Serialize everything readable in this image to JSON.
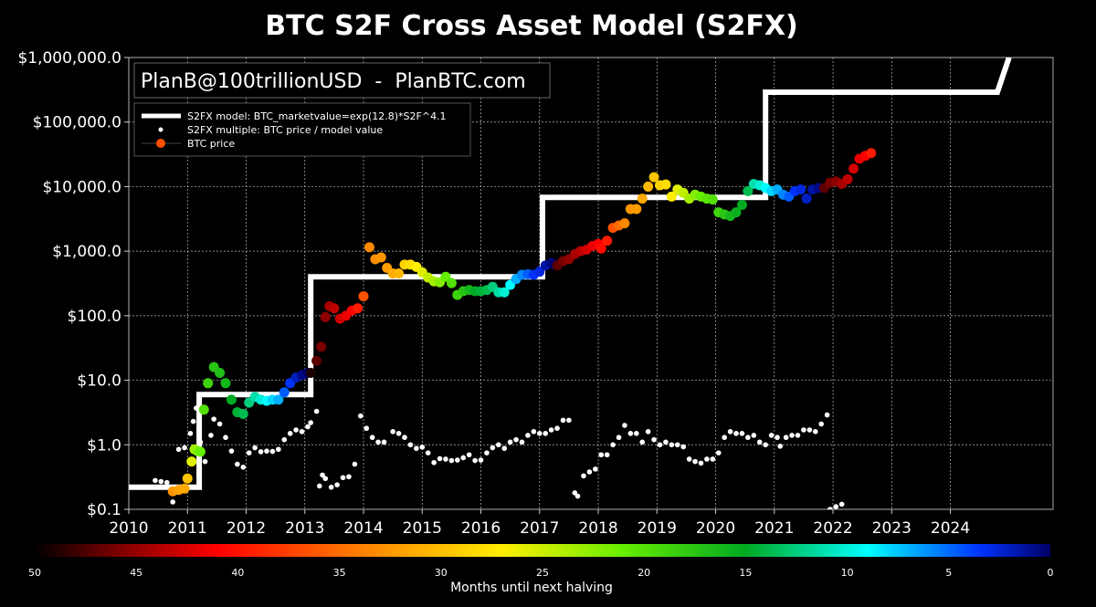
{
  "chart_data": {
    "type": "scatter",
    "title": "BTC S2F Cross Asset Model (S2FX)",
    "watermark": "PlanB@100trillionUSD  -  PlanBTC.com",
    "yscale": "log",
    "ylim": [
      0.1,
      1000000
    ],
    "xlim": [
      2010,
      2025.75
    ],
    "y_ticks": [
      {
        "value": 0.1,
        "label": "$0.1"
      },
      {
        "value": 1,
        "label": "$1.0"
      },
      {
        "value": 10,
        "label": "$10.0"
      },
      {
        "value": 100,
        "label": "$100.0"
      },
      {
        "value": 1000,
        "label": "$1,000.0"
      },
      {
        "value": 10000,
        "label": "$10,000.0"
      },
      {
        "value": 100000,
        "label": "$100,000.0"
      },
      {
        "value": 1000000,
        "label": "$1,000,000.0"
      }
    ],
    "x_ticks": [
      "2010",
      "2011",
      "2012",
      "2013",
      "2014",
      "2015",
      "2016",
      "2017",
      "2018",
      "2019",
      "2020",
      "2021",
      "2022",
      "2023",
      "2024"
    ],
    "grid": true,
    "legend_position": "top-left",
    "legend": [
      "S2FX model: BTC_marketvalue=exp(12.8)*S2F^4.1",
      "S2FX multiple: BTC price / model value",
      "BTC price"
    ],
    "colorbar": {
      "label": "Months until next halving",
      "ticks": [
        "50",
        "45",
        "40",
        "35",
        "30",
        "25",
        "20",
        "15",
        "10",
        "5",
        "0"
      ]
    },
    "series": [
      {
        "type": "step",
        "points": [
          [
            2010.0,
            0.22
          ],
          [
            2011.2,
            0.22
          ],
          [
            2011.2,
            6
          ],
          [
            2013.1,
            6
          ],
          [
            2013.1,
            400
          ],
          [
            2017.05,
            400
          ],
          [
            2017.05,
            6800
          ],
          [
            2020.85,
            6800
          ],
          [
            2020.85,
            290000
          ],
          [
            2024.8,
            290000
          ],
          [
            2025.0,
            1000000
          ]
        ]
      },
      {
        "type": "scatter",
        "points": [
          [
            2010.45,
            0.28
          ],
          [
            2010.55,
            0.27
          ],
          [
            2010.65,
            0.26
          ],
          [
            2010.75,
            0.13
          ],
          [
            2010.85,
            0.85
          ],
          [
            2010.95,
            0.9
          ],
          [
            2011.05,
            1.5
          ],
          [
            2011.1,
            2.3
          ],
          [
            2011.15,
            3.7
          ],
          [
            2011.22,
            1.1
          ],
          [
            2011.3,
            0.55
          ],
          [
            2011.4,
            1.4
          ],
          [
            2011.45,
            2.5
          ],
          [
            2011.55,
            2.1
          ],
          [
            2011.65,
            1.3
          ],
          [
            2011.75,
            0.8
          ],
          [
            2011.85,
            0.5
          ],
          [
            2011.95,
            0.45
          ],
          [
            2012.05,
            0.75
          ],
          [
            2012.15,
            0.9
          ],
          [
            2012.25,
            0.78
          ],
          [
            2012.35,
            0.8
          ],
          [
            2012.45,
            0.79
          ],
          [
            2012.55,
            0.85
          ],
          [
            2012.65,
            1.2
          ],
          [
            2012.75,
            1.5
          ],
          [
            2012.85,
            1.7
          ],
          [
            2012.95,
            1.6
          ],
          [
            2013.05,
            1.9
          ],
          [
            2013.1,
            2.2
          ],
          [
            2013.2,
            3.3
          ],
          [
            2013.25,
            0.23
          ],
          [
            2013.3,
            0.34
          ],
          [
            2013.35,
            0.3
          ],
          [
            2013.45,
            0.22
          ],
          [
            2013.55,
            0.24
          ],
          [
            2013.65,
            0.31
          ],
          [
            2013.75,
            0.32
          ],
          [
            2013.85,
            0.5
          ],
          [
            2013.95,
            2.8
          ],
          [
            2014.05,
            1.8
          ],
          [
            2014.15,
            1.3
          ],
          [
            2014.25,
            1.1
          ],
          [
            2014.35,
            1.1
          ],
          [
            2014.5,
            1.6
          ],
          [
            2014.6,
            1.5
          ],
          [
            2014.7,
            1.3
          ],
          [
            2014.8,
            1.0
          ],
          [
            2014.9,
            0.88
          ],
          [
            2015.0,
            0.92
          ],
          [
            2015.1,
            0.75
          ],
          [
            2015.2,
            0.53
          ],
          [
            2015.3,
            0.61
          ],
          [
            2015.4,
            0.6
          ],
          [
            2015.5,
            0.57
          ],
          [
            2015.6,
            0.58
          ],
          [
            2015.7,
            0.63
          ],
          [
            2015.8,
            0.7
          ],
          [
            2015.9,
            0.57
          ],
          [
            2016.0,
            0.58
          ],
          [
            2016.1,
            0.75
          ],
          [
            2016.2,
            0.9
          ],
          [
            2016.3,
            1.0
          ],
          [
            2016.4,
            0.88
          ],
          [
            2016.5,
            1.1
          ],
          [
            2016.6,
            1.2
          ],
          [
            2016.7,
            1.1
          ],
          [
            2016.8,
            1.4
          ],
          [
            2016.9,
            1.6
          ],
          [
            2017.0,
            1.5
          ],
          [
            2017.1,
            1.5
          ],
          [
            2017.2,
            1.7
          ],
          [
            2017.3,
            1.8
          ],
          [
            2017.4,
            2.4
          ],
          [
            2017.5,
            2.4
          ],
          [
            2017.6,
            0.18
          ],
          [
            2017.65,
            0.16
          ],
          [
            2017.75,
            0.33
          ],
          [
            2017.85,
            0.38
          ],
          [
            2017.95,
            0.42
          ],
          [
            2018.05,
            0.7
          ],
          [
            2018.15,
            0.7
          ],
          [
            2018.25,
            1.0
          ],
          [
            2018.35,
            1.3
          ],
          [
            2018.45,
            2.0
          ],
          [
            2018.55,
            1.5
          ],
          [
            2018.65,
            1.5
          ],
          [
            2018.75,
            1.1
          ],
          [
            2018.85,
            1.6
          ],
          [
            2018.95,
            1.2
          ],
          [
            2019.05,
            1.0
          ],
          [
            2019.15,
            1.1
          ],
          [
            2019.25,
            1.0
          ],
          [
            2019.35,
            1.0
          ],
          [
            2019.45,
            0.93
          ],
          [
            2019.55,
            0.6
          ],
          [
            2019.65,
            0.55
          ],
          [
            2019.75,
            0.52
          ],
          [
            2019.85,
            0.6
          ],
          [
            2019.95,
            0.6
          ],
          [
            2020.05,
            0.75
          ],
          [
            2020.15,
            1.3
          ],
          [
            2020.25,
            1.6
          ],
          [
            2020.35,
            1.5
          ],
          [
            2020.45,
            1.5
          ],
          [
            2020.55,
            1.3
          ],
          [
            2020.65,
            1.4
          ],
          [
            2020.75,
            1.1
          ],
          [
            2020.85,
            1.0
          ],
          [
            2020.95,
            1.4
          ],
          [
            2021.05,
            1.3
          ],
          [
            2021.1,
            0.95
          ],
          [
            2021.2,
            1.3
          ],
          [
            2021.3,
            1.4
          ],
          [
            2021.4,
            1.4
          ],
          [
            2021.5,
            1.7
          ],
          [
            2021.6,
            1.7
          ],
          [
            2021.7,
            1.6
          ],
          [
            2021.8,
            2.1
          ],
          [
            2021.9,
            2.9
          ],
          [
            2021.95,
            0.1
          ],
          [
            2022.05,
            0.11
          ],
          [
            2022.15,
            0.12
          ]
        ]
      },
      {
        "type": "scatter",
        "points": [
          [
            2010.75,
            0.19,
            33
          ],
          [
            2010.85,
            0.2,
            31
          ],
          [
            2010.95,
            0.21,
            30
          ],
          [
            2011.0,
            0.3,
            28
          ],
          [
            2011.07,
            0.55,
            24
          ],
          [
            2011.12,
            0.85,
            22
          ],
          [
            2011.17,
            0.8,
            21
          ],
          [
            2011.22,
            0.78,
            20
          ],
          [
            2011.28,
            3.5,
            19
          ],
          [
            2011.35,
            9,
            18
          ],
          [
            2011.45,
            16,
            17
          ],
          [
            2011.55,
            13,
            16.5
          ],
          [
            2011.65,
            9,
            16
          ],
          [
            2011.75,
            5,
            15
          ],
          [
            2011.85,
            3.2,
            14.5
          ],
          [
            2011.95,
            3,
            14
          ],
          [
            2012.05,
            4.5,
            13
          ],
          [
            2012.15,
            5.5,
            12
          ],
          [
            2012.25,
            5,
            11
          ],
          [
            2012.35,
            4.8,
            10
          ],
          [
            2012.45,
            5,
            9
          ],
          [
            2012.55,
            5,
            8
          ],
          [
            2012.65,
            6.5,
            6
          ],
          [
            2012.75,
            9,
            5
          ],
          [
            2012.85,
            11,
            3
          ],
          [
            2012.95,
            12,
            1
          ],
          [
            2013.05,
            13,
            0.2
          ],
          [
            2013.1,
            13,
            49
          ],
          [
            2013.2,
            20,
            47
          ],
          [
            2013.28,
            33,
            46
          ],
          [
            2013.35,
            95,
            45
          ],
          [
            2013.42,
            140,
            44
          ],
          [
            2013.5,
            130,
            43
          ],
          [
            2013.6,
            90,
            42
          ],
          [
            2013.7,
            100,
            41
          ],
          [
            2013.8,
            120,
            40
          ],
          [
            2013.9,
            130,
            39
          ],
          [
            2014.0,
            200,
            37
          ],
          [
            2014.1,
            1150,
            35
          ],
          [
            2014.2,
            750,
            34
          ],
          [
            2014.3,
            800,
            33
          ],
          [
            2014.4,
            550,
            32
          ],
          [
            2014.5,
            450,
            30
          ],
          [
            2014.6,
            450,
            29
          ],
          [
            2014.7,
            620,
            27
          ],
          [
            2014.8,
            620,
            26
          ],
          [
            2014.9,
            570,
            25
          ],
          [
            2015.0,
            470,
            24
          ],
          [
            2015.1,
            390,
            23
          ],
          [
            2015.2,
            340,
            22
          ],
          [
            2015.3,
            330,
            21
          ],
          [
            2015.4,
            400,
            20
          ],
          [
            2015.5,
            320,
            19
          ],
          [
            2015.6,
            210,
            18
          ],
          [
            2015.7,
            240,
            17
          ],
          [
            2015.8,
            250,
            16
          ],
          [
            2015.9,
            240,
            15
          ],
          [
            2016.0,
            240,
            14.5
          ],
          [
            2016.1,
            250,
            14
          ],
          [
            2016.2,
            280,
            13
          ],
          [
            2016.3,
            230,
            12
          ],
          [
            2016.4,
            230,
            11
          ],
          [
            2016.5,
            300,
            10
          ],
          [
            2016.6,
            370,
            8
          ],
          [
            2016.7,
            430,
            7
          ],
          [
            2016.8,
            440,
            6
          ],
          [
            2016.9,
            430,
            5
          ],
          [
            2017.0,
            480,
            4
          ],
          [
            2017.1,
            600,
            2
          ],
          [
            2017.2,
            650,
            1
          ],
          [
            2017.25,
            620,
            0.2
          ],
          [
            2017.3,
            600,
            47
          ],
          [
            2017.4,
            700,
            46
          ],
          [
            2017.5,
            750,
            45
          ],
          [
            2017.6,
            900,
            44
          ],
          [
            2017.7,
            1000,
            43
          ],
          [
            2017.8,
            1050,
            42
          ],
          [
            2017.9,
            1200,
            41
          ],
          [
            2018.0,
            1300,
            40
          ],
          [
            2018.05,
            1100,
            39.5
          ],
          [
            2018.15,
            1450,
            39
          ],
          [
            2018.25,
            2300,
            37
          ],
          [
            2018.35,
            2500,
            36
          ],
          [
            2018.45,
            2700,
            35
          ],
          [
            2018.55,
            4500,
            33
          ],
          [
            2018.65,
            4500,
            32
          ],
          [
            2018.75,
            6500,
            30
          ],
          [
            2018.85,
            10000,
            29
          ],
          [
            2018.95,
            14000,
            28
          ],
          [
            2019.05,
            10500,
            27
          ],
          [
            2019.15,
            10800,
            26
          ],
          [
            2019.25,
            7000,
            25
          ],
          [
            2019.35,
            9000,
            24
          ],
          [
            2019.45,
            8000,
            23
          ],
          [
            2019.55,
            6500,
            22
          ],
          [
            2019.65,
            7500,
            21
          ],
          [
            2019.75,
            7000,
            20
          ],
          [
            2019.85,
            6500,
            19.5
          ],
          [
            2019.95,
            6300,
            19
          ],
          [
            2020.05,
            4000,
            18
          ],
          [
            2020.15,
            3700,
            17
          ],
          [
            2020.25,
            3500,
            16
          ],
          [
            2020.35,
            4000,
            15.5
          ],
          [
            2020.45,
            5200,
            15
          ],
          [
            2020.55,
            8500,
            14
          ],
          [
            2020.65,
            11000,
            12
          ],
          [
            2020.75,
            10500,
            11
          ],
          [
            2020.85,
            9500,
            10
          ],
          [
            2020.95,
            8500,
            9
          ],
          [
            2021.05,
            9000,
            8
          ],
          [
            2021.15,
            7500,
            7
          ],
          [
            2021.25,
            7000,
            6
          ],
          [
            2021.35,
            8500,
            5
          ],
          [
            2021.45,
            9000,
            4
          ],
          [
            2021.55,
            6500,
            3
          ],
          [
            2021.65,
            9000,
            2
          ],
          [
            2021.75,
            9500,
            1
          ],
          [
            2021.85,
            9500,
            47
          ],
          [
            2021.95,
            11500,
            46
          ],
          [
            2022.05,
            12000,
            45
          ],
          [
            2022.15,
            11000,
            44
          ],
          [
            2022.25,
            13000,
            43
          ],
          [
            2022.35,
            19000,
            42
          ],
          [
            2022.45,
            27000,
            41
          ],
          [
            2022.55,
            30000,
            40
          ],
          [
            2022.65,
            33000,
            39
          ]
        ]
      }
    ]
  }
}
